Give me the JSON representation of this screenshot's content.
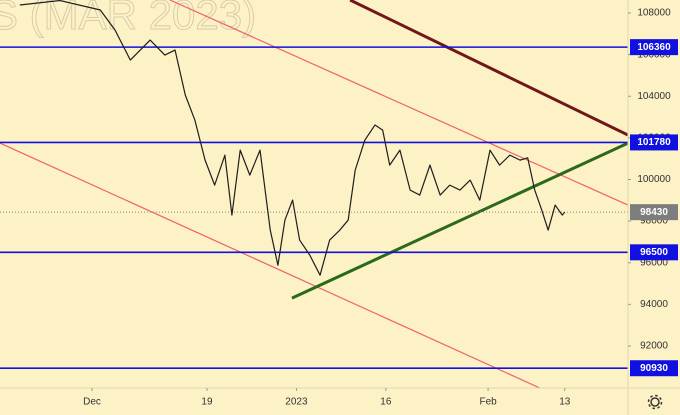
{
  "chart_data": {
    "type": "line",
    "watermark": "S (MAR 2023)",
    "color": "#1e1e1e",
    "x": [
      -11.3,
      -5.0,
      1.3,
      3.6,
      6.0,
      9.1,
      11.4,
      13.0,
      14.6,
      16.1,
      17.7,
      19.2,
      20.8,
      21.9,
      23.2,
      24.7,
      26.3,
      27.9,
      29.1,
      30.2,
      31.4,
      32.5,
      34.1,
      35.7,
      37.2,
      38.8,
      40.1,
      41.2,
      42.7,
      44.3,
      45.5,
      46.6,
      48.2,
      49.8,
      51.3,
      52.9,
      54.5,
      56.0,
      57.6,
      59.2,
      60.7,
      62.3,
      63.8,
      65.4,
      67.0,
      68.2,
      69.3,
      70.4,
      71.4,
      72.5,
      73.6,
      74.0
    ],
    "values": [
      108385,
      108600,
      108144,
      107183,
      105740,
      106700,
      105980,
      106220,
      104060,
      102855,
      100930,
      99730,
      101170,
      98290,
      101410,
      100210,
      101410,
      97570,
      95880,
      98050,
      99010,
      97090,
      96360,
      95400,
      97090,
      97570,
      98050,
      100450,
      101890,
      102620,
      102370,
      100690,
      101410,
      99490,
      99250,
      100690,
      99250,
      99730,
      99490,
      99970,
      99010,
      101410,
      100690,
      101170,
      100930,
      101040,
      99490,
      98530,
      97570,
      98770,
      98290,
      98430
    ],
    "xlim": [
      -14.4,
      83.9
    ],
    "xticks": [
      {
        "value": 0,
        "label": "Dec"
      },
      {
        "value": 18,
        "label": "19"
      },
      {
        "value": 32,
        "label": "2023"
      },
      {
        "value": 46,
        "label": "16"
      },
      {
        "value": 62,
        "label": "Feb"
      },
      {
        "value": 74,
        "label": "13"
      }
    ],
    "ylim": [
      89980,
      108625
    ],
    "yticks": [
      92000,
      94000,
      96000,
      98000,
      100000,
      102000,
      104000,
      106000,
      108000
    ],
    "levels": [
      {
        "value": 106360,
        "color": "#1010e0"
      },
      {
        "value": 101780,
        "color": "#1010e0"
      },
      {
        "value": 96500,
        "color": "#1010e0"
      },
      {
        "value": 90930,
        "color": "#1010e0"
      }
    ],
    "last_value": 98430,
    "trendlines": [
      {
        "color": "#701818",
        "x": [
          40.4,
          83.9
        ],
        "values": [
          108625,
          102135
        ]
      },
      {
        "color": "#f06070",
        "x": [
          12.2,
          83.9
        ],
        "values": [
          108625,
          98770
        ]
      },
      {
        "color": "#f06070",
        "x": [
          -14.4,
          70.1
        ],
        "values": [
          101750,
          89980
        ]
      },
      {
        "color": "#2a6a1a",
        "x": [
          31.3,
          83.9
        ],
        "values": [
          94300,
          101750
        ]
      }
    ]
  }
}
